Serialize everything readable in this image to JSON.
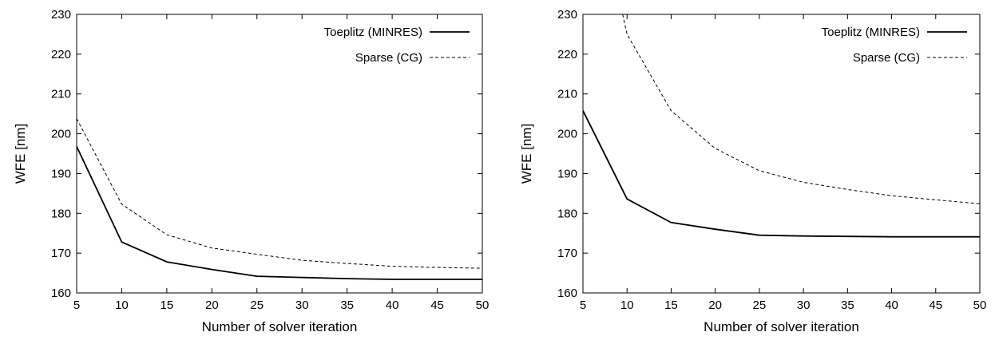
{
  "chart_data": [
    {
      "type": "line",
      "title": "",
      "xlabel": "Number of solver iteration",
      "ylabel": "WFE [nm]",
      "xlim": [
        5,
        50
      ],
      "ylim": [
        160,
        230
      ],
      "xticks": [
        5,
        10,
        15,
        20,
        25,
        30,
        35,
        40,
        45,
        50
      ],
      "yticks": [
        160,
        170,
        180,
        190,
        200,
        210,
        220,
        230
      ],
      "grid": false,
      "legend_position": "top-right",
      "series": [
        {
          "name": "Toeplitz (MINRES)",
          "style": "solid",
          "color": "#000000",
          "x": [
            5,
            10,
            15,
            20,
            25,
            30,
            35,
            40,
            45,
            50
          ],
          "y": [
            196.8,
            172.8,
            167.8,
            165.9,
            164.2,
            163.9,
            163.6,
            163.4,
            163.4,
            163.4
          ]
        },
        {
          "name": "Sparse (CG)",
          "style": "dashed",
          "color": "#000000",
          "x": [
            5,
            10,
            15,
            20,
            25,
            30,
            35,
            40,
            45,
            50
          ],
          "y": [
            203.8,
            182.3,
            174.6,
            171.3,
            169.7,
            168.2,
            167.4,
            166.7,
            166.4,
            166.2
          ]
        }
      ]
    },
    {
      "type": "line",
      "title": "",
      "xlabel": "Number of solver iteration",
      "ylabel": "WFE [nm]",
      "xlim": [
        5,
        50
      ],
      "ylim": [
        160,
        230
      ],
      "xticks": [
        5,
        10,
        15,
        20,
        25,
        30,
        35,
        40,
        45,
        50
      ],
      "yticks": [
        160,
        170,
        180,
        190,
        200,
        210,
        220,
        230
      ],
      "grid": false,
      "legend_position": "top-right",
      "series": [
        {
          "name": "Toeplitz (MINRES)",
          "style": "solid",
          "color": "#000000",
          "x": [
            5,
            10,
            15,
            20,
            25,
            30,
            35,
            40,
            45,
            50
          ],
          "y": [
            205.8,
            183.6,
            177.7,
            176.0,
            174.5,
            174.3,
            174.2,
            174.1,
            174.1,
            174.1
          ]
        },
        {
          "name": "Sparse (CG)",
          "style": "dashed",
          "color": "#000000",
          "x": [
            9.5,
            10,
            15,
            20,
            25,
            30,
            35,
            40,
            45,
            50
          ],
          "y": [
            230.0,
            225.0,
            205.8,
            196.3,
            190.7,
            187.8,
            186.0,
            184.4,
            183.4,
            182.4
          ]
        }
      ]
    }
  ]
}
